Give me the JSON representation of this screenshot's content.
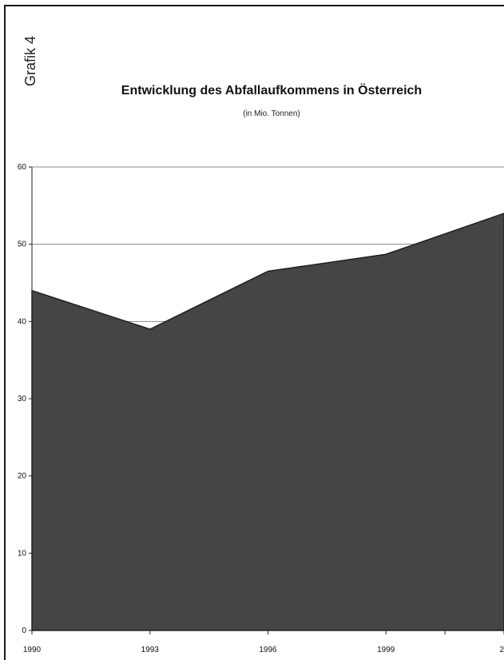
{
  "side_label": "Grafik 4",
  "chart_data": {
    "type": "area",
    "title": "Entwicklung des Abfallaufkommens in Österreich",
    "subtitle": "(in Mio. Tonnen)",
    "xlabel": "",
    "ylabel": "",
    "x_tick_labels": [
      "1990",
      "1993",
      "1996",
      "1999",
      "2"
    ],
    "y_ticks": [
      "0",
      "10",
      "20",
      "30",
      "40",
      "50",
      "60"
    ],
    "ylim": [
      0,
      60
    ],
    "xlim": [
      1990,
      2002
    ],
    "grid": true,
    "fill_color": "#454545",
    "series": [
      {
        "x": [
          1990,
          1993,
          1996,
          1999,
          2002
        ],
        "values": [
          44,
          39,
          46.5,
          48.7,
          54
        ]
      }
    ]
  }
}
